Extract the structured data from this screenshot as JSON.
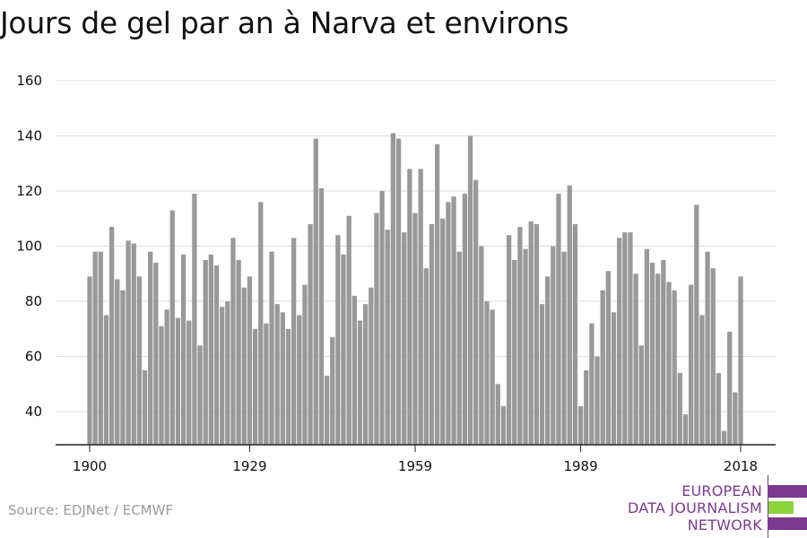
{
  "title": "Jours de gel par an à Narva et environs",
  "source": "Source: EDJNet / ECMWF",
  "logo": {
    "lines": [
      "EUROPEAN",
      "DATA JOURNALISM",
      "NETWORK"
    ],
    "colors": {
      "purple": "#7a3a8f",
      "green": "#8cd43c"
    }
  },
  "colors": {
    "bar": "#999999",
    "grid": "#dcdcdc",
    "axis": "#222222",
    "text": "#111111"
  },
  "chart_data": {
    "type": "bar",
    "title": "Jours de gel par an à Narva et environs",
    "xlabel": "",
    "ylabel": "",
    "ylim": [
      28,
      160
    ],
    "xlim": [
      1900,
      2018
    ],
    "yticks": [
      40,
      60,
      80,
      100,
      120,
      140,
      160
    ],
    "xticks": [
      1900,
      1929,
      1959,
      1989,
      2018
    ],
    "grid": true,
    "x": [
      1900,
      1901,
      1902,
      1903,
      1904,
      1905,
      1906,
      1907,
      1908,
      1909,
      1910,
      1911,
      1912,
      1913,
      1914,
      1915,
      1916,
      1917,
      1918,
      1919,
      1920,
      1921,
      1922,
      1923,
      1924,
      1925,
      1926,
      1927,
      1928,
      1929,
      1930,
      1931,
      1932,
      1933,
      1934,
      1935,
      1936,
      1937,
      1938,
      1939,
      1940,
      1941,
      1942,
      1943,
      1944,
      1945,
      1946,
      1947,
      1948,
      1949,
      1950,
      1951,
      1952,
      1953,
      1954,
      1955,
      1956,
      1957,
      1958,
      1959,
      1960,
      1961,
      1962,
      1963,
      1964,
      1965,
      1966,
      1967,
      1968,
      1969,
      1970,
      1971,
      1972,
      1973,
      1974,
      1975,
      1976,
      1977,
      1978,
      1979,
      1980,
      1981,
      1982,
      1983,
      1984,
      1985,
      1986,
      1987,
      1988,
      1989,
      1990,
      1991,
      1992,
      1993,
      1994,
      1995,
      1996,
      1997,
      1998,
      1999,
      2000,
      2001,
      2002,
      2003,
      2004,
      2005,
      2006,
      2007,
      2008,
      2009,
      2010,
      2011,
      2012,
      2013,
      2014,
      2015,
      2016,
      2017,
      2018
    ],
    "values": [
      89,
      98,
      98,
      75,
      107,
      88,
      84,
      102,
      101,
      89,
      55,
      98,
      94,
      71,
      77,
      113,
      74,
      97,
      73,
      119,
      64,
      95,
      97,
      93,
      78,
      80,
      103,
      95,
      85,
      89,
      70,
      116,
      72,
      98,
      79,
      76,
      70,
      103,
      75,
      86,
      108,
      139,
      121,
      53,
      67,
      104,
      97,
      111,
      82,
      73,
      79,
      85,
      112,
      120,
      106,
      141,
      139,
      105,
      128,
      112,
      128,
      92,
      108,
      137,
      110,
      116,
      118,
      98,
      119,
      140,
      124,
      100,
      80,
      77,
      50,
      42,
      104,
      95,
      107,
      99,
      109,
      108,
      79,
      89,
      100,
      119,
      98,
      122,
      108,
      42,
      55,
      72,
      60,
      84,
      91,
      76,
      103,
      105,
      105,
      90,
      64,
      99,
      94,
      90,
      95,
      87,
      84,
      54,
      39,
      86,
      115,
      75,
      98,
      92,
      54,
      33,
      69,
      47,
      89
    ]
  }
}
